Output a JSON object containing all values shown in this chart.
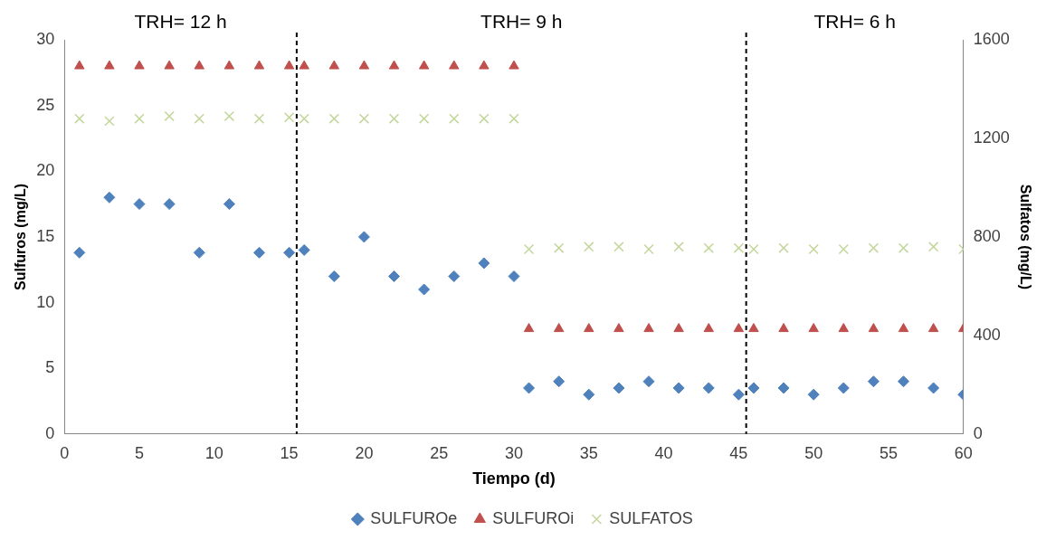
{
  "chart_data": {
    "type": "scatter",
    "xlabel": "Tiempo (d)",
    "ylabel": "Sulfuros (mg/L)",
    "y2label": "Sulfatos (mg/L)",
    "xlim": [
      0,
      60
    ],
    "xticks": [
      0,
      5,
      10,
      15,
      20,
      25,
      30,
      35,
      40,
      45,
      50,
      55,
      60
    ],
    "ylim": [
      0,
      30
    ],
    "yticks": [
      0,
      5,
      10,
      15,
      20,
      25,
      30
    ],
    "y2lim": [
      0,
      1600
    ],
    "y2ticks": [
      0,
      400,
      800,
      1200,
      1600
    ],
    "grid": false,
    "legend": "bottom",
    "annotations": [
      "TRH= 12 h",
      "TRH= 9 h",
      "TRH= 6 h"
    ],
    "ref_lines": [
      {
        "axis": "x",
        "value": 15.5,
        "line_style": "dashed",
        "color": "#000000"
      },
      {
        "axis": "x",
        "value": 45.5,
        "line_style": "dashed",
        "color": "#000000"
      }
    ],
    "series": [
      {
        "name": "SULFUROe",
        "color": "#4f81bd",
        "marker": "diamond",
        "x": [
          1,
          3,
          5,
          7,
          9,
          11,
          13,
          15,
          16,
          18,
          20,
          22,
          24,
          26,
          28,
          30,
          31,
          33,
          35,
          37,
          39,
          41,
          43,
          45,
          46,
          48,
          50,
          52,
          54,
          56,
          58,
          60
        ],
        "values": [
          13.8,
          18,
          17.5,
          17.5,
          13.8,
          17.5,
          13.8,
          13.8,
          14,
          12,
          15,
          12,
          11,
          12,
          13,
          12,
          3.5,
          4,
          3,
          3.5,
          4,
          3.5,
          3.5,
          3,
          3.5,
          3.5,
          3,
          3.5,
          4,
          4,
          3.5,
          3
        ]
      },
      {
        "name": "SULFUROi",
        "color": "#c0504d",
        "marker": "triangle",
        "x": [
          1,
          3,
          5,
          7,
          9,
          11,
          13,
          15,
          16,
          18,
          20,
          22,
          24,
          26,
          28,
          30,
          31,
          33,
          35,
          37,
          39,
          41,
          43,
          45,
          46,
          48,
          50,
          52,
          54,
          56,
          58,
          60
        ],
        "values": [
          28,
          28,
          28,
          28,
          28,
          28,
          28,
          28,
          28,
          28,
          28,
          28,
          28,
          28,
          28,
          28,
          8,
          8,
          8,
          8,
          8,
          8,
          8,
          8,
          8,
          8,
          8,
          8,
          8,
          8,
          8,
          8
        ]
      },
      {
        "name": "SULFATOS",
        "color": "#c3d69b",
        "marker": "cross",
        "axis": "y2",
        "x": [
          1,
          3,
          5,
          7,
          9,
          11,
          13,
          15,
          16,
          18,
          20,
          22,
          24,
          26,
          28,
          30,
          31,
          33,
          35,
          37,
          39,
          41,
          43,
          45,
          46,
          48,
          50,
          52,
          54,
          56,
          58,
          60
        ],
        "values": [
          1280,
          1270,
          1280,
          1290,
          1280,
          1290,
          1280,
          1285,
          1280,
          1280,
          1280,
          1280,
          1280,
          1280,
          1280,
          1280,
          750,
          755,
          760,
          760,
          750,
          760,
          755,
          755,
          750,
          755,
          750,
          750,
          755,
          755,
          760,
          750
        ]
      }
    ]
  }
}
